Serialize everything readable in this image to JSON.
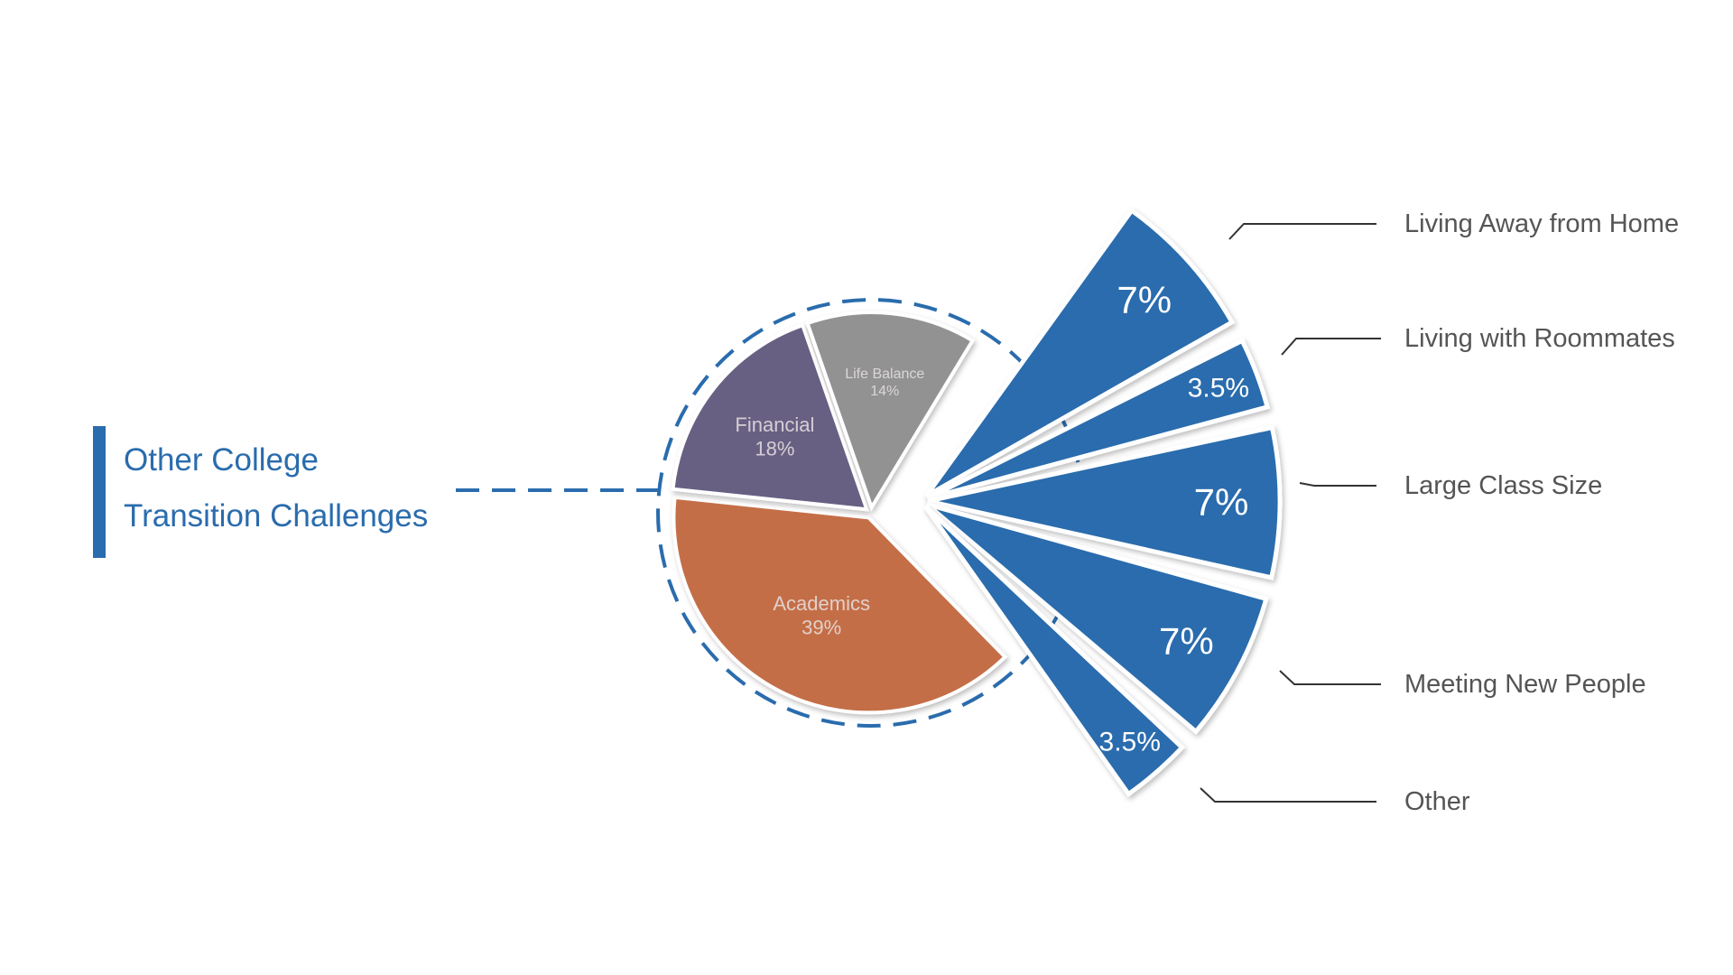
{
  "title": {
    "line1": "Other College",
    "line2": "Transition Challenges"
  },
  "colors": {
    "accent": "#2a6cad",
    "academics": "#c46e46",
    "financial": "#676183",
    "life_balance": "#929292",
    "other_group": "#2a6cad",
    "label_text": "#555555"
  },
  "chart_data": {
    "type": "pie",
    "title": "Other College Transition Challenges",
    "slices": [
      {
        "label": "Academics",
        "value": 39,
        "display": "39%",
        "group": "main"
      },
      {
        "label": "Financial",
        "value": 18,
        "display": "18%",
        "group": "main"
      },
      {
        "label": "Life Balance",
        "value": 14,
        "display": "14%",
        "group": "main"
      }
    ],
    "exploded_group": [
      {
        "label": "Living Away from Home",
        "value": 7,
        "display": "7%"
      },
      {
        "label": "Living with Roommates",
        "value": 3.5,
        "display": "3.5%"
      },
      {
        "label": "Large Class Size",
        "value": 7,
        "display": "7%"
      },
      {
        "label": "Meeting New People",
        "value": 7,
        "display": "7%"
      },
      {
        "label": "Other",
        "value": 3.5,
        "display": "3.5%"
      }
    ],
    "legend": "callouts-right"
  }
}
